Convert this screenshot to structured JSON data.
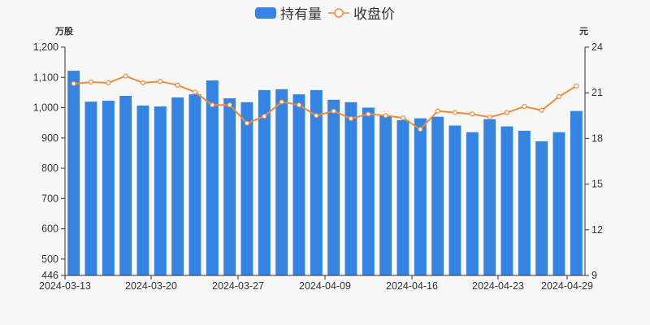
{
  "legend": {
    "series1": "持有量",
    "series2": "收盘价"
  },
  "axes": {
    "left_unit": "万股",
    "right_unit": "元"
  },
  "colors": {
    "bar": "#3584e4",
    "line": "#f08a3c",
    "axis": "#333333",
    "background": "#f8f8f8"
  },
  "chart_data": {
    "type": "bar+line",
    "title": "",
    "legend": [
      "持有量",
      "收盘价"
    ],
    "legend_position": "top-center",
    "xlabel": "",
    "ylabel_left": "万股",
    "ylabel_right": "元",
    "x_tick_labels": [
      "2024-03-13",
      "2024-03-20",
      "2024-03-27",
      "2024-04-09",
      "2024-04-16",
      "2024-04-23",
      "2024-04-29"
    ],
    "x_tick_indices": [
      0,
      5,
      10,
      15,
      20,
      25,
      29
    ],
    "y_left_ticks": [
      446,
      500,
      600,
      700,
      800,
      900,
      "1,000",
      "1,100",
      "1,200"
    ],
    "y_left_range": [
      446,
      1200
    ],
    "y_right_ticks": [
      9,
      12,
      15,
      18,
      21,
      24
    ],
    "y_right_range": [
      9,
      24
    ],
    "grid": false,
    "series": [
      {
        "name": "持有量",
        "type": "bar",
        "axis": "left",
        "values": [
          1122,
          1020,
          1023,
          1039,
          1007,
          1004,
          1034,
          1044,
          1090,
          1031,
          1018,
          1058,
          1061,
          1044,
          1058,
          1026,
          1018,
          1000,
          973,
          959,
          965,
          970,
          941,
          919,
          962,
          938,
          924,
          889,
          919,
          989
        ]
      },
      {
        "name": "收盘价",
        "type": "line",
        "axis": "right",
        "values": [
          21.6,
          21.7,
          21.65,
          22.1,
          21.65,
          21.75,
          21.5,
          21.05,
          20.2,
          20.2,
          19.0,
          19.45,
          20.4,
          20.2,
          19.5,
          19.8,
          19.3,
          19.6,
          19.5,
          19.35,
          18.6,
          19.8,
          19.7,
          19.6,
          19.4,
          19.7,
          20.1,
          19.85,
          20.75,
          21.45
        ]
      }
    ]
  }
}
